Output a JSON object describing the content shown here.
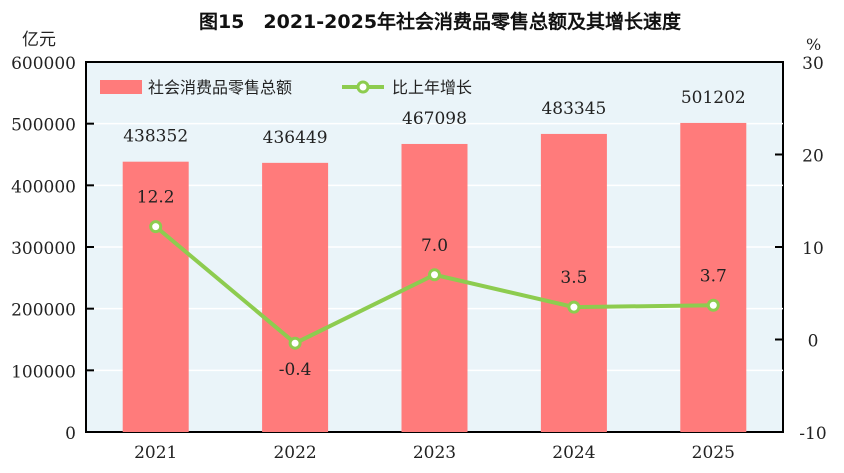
{
  "chart_data": {
    "type": "bar+line",
    "title": "图15　2021-2025年社会消费品零售总额及其增长速度",
    "left_axis_unit": "亿元",
    "right_axis_unit": "%",
    "categories": [
      "2021",
      "2022",
      "2023",
      "2024",
      "2025"
    ],
    "left_ylim": [
      0,
      600000
    ],
    "left_ticks": [
      "0",
      "100000",
      "200000",
      "300000",
      "400000",
      "500000",
      "600000"
    ],
    "right_ylim": [
      -10,
      30
    ],
    "right_ticks": [
      "-10",
      "0",
      "10",
      "20",
      "30"
    ],
    "grid": true,
    "legend_position": "top-left",
    "series": [
      {
        "name": "社会消费品零售总额",
        "type": "bar",
        "axis": "left",
        "color": "#ff7b7b",
        "values": [
          438352,
          436449,
          467098,
          483345,
          501202
        ],
        "labels": [
          "438352",
          "436449",
          "467098",
          "483345",
          "501202"
        ]
      },
      {
        "name": "比上年增长",
        "type": "line",
        "axis": "right",
        "color": "#8dcc4f",
        "values": [
          12.2,
          -0.4,
          7.0,
          3.5,
          3.7
        ],
        "labels": [
          "12.2",
          "-0.4",
          "7.0",
          "3.5",
          "3.7"
        ]
      }
    ],
    "plot_background": "#eaf4f9"
  }
}
